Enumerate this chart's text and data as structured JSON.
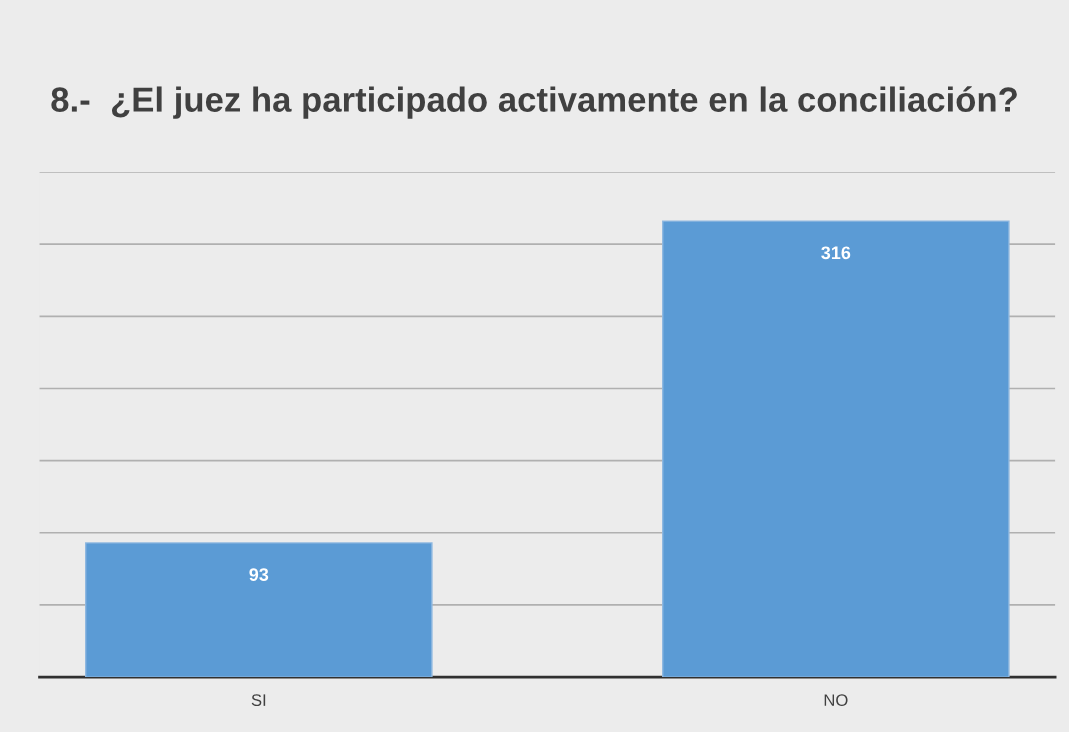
{
  "chart_data": {
    "type": "bar",
    "title": "8.-  ¿El juez ha participado activamente en la conciliación?",
    "categories": [
      "SI",
      "NO"
    ],
    "values": [
      93,
      316
    ],
    "color": "#5b9bd5",
    "ylim": [
      0,
      350
    ],
    "yticks": [
      {
        "value": 0,
        "label": null
      },
      {
        "value": 50,
        "label": null
      },
      {
        "value": 100,
        "label": null
      },
      {
        "value": 150,
        "label": null
      },
      {
        "value": 200,
        "label": null
      },
      {
        "value": 250,
        "label": null
      },
      {
        "value": 300,
        "label": null
      },
      {
        "value": 350,
        "label": null
      }
    ],
    "grid": "y",
    "data_labels": true,
    "tick_labels": "x"
  }
}
